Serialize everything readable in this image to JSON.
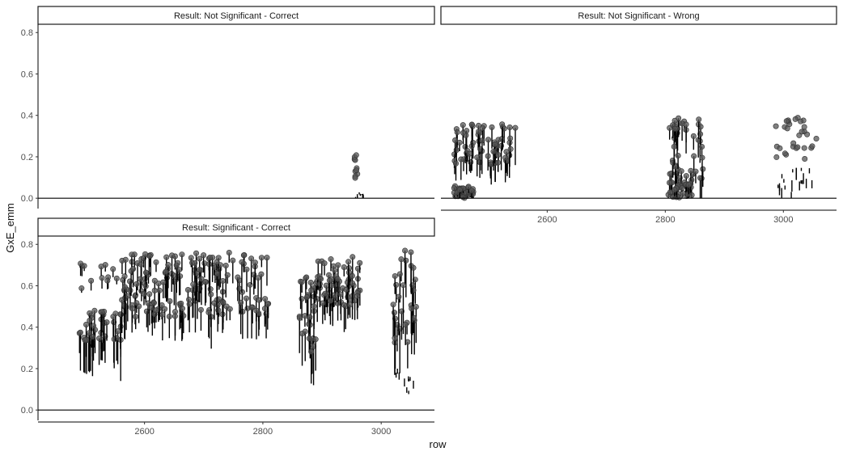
{
  "chart_data": {
    "type": "scatter",
    "xlabel": "row",
    "ylabel": "GxE_emm",
    "ylim": [
      0.0,
      0.82
    ],
    "yticks": [
      "0.0",
      "0.2",
      "0.4",
      "0.6",
      "0.8"
    ],
    "xticks": [
      "2600",
      "2800",
      "3000"
    ],
    "xlim": [
      2420,
      3090
    ],
    "hline_y": 0,
    "point_color": "#555555",
    "line_color": "#000000",
    "facets": [
      {
        "title": "Result: Not Significant - Correct",
        "groups": [
          {
            "x": [
              2955,
              2960
            ],
            "y": [
              0.08,
              0.22
            ],
            "n": 10,
            "h": [
              0.005,
              0.02
            ],
            "style": "point"
          },
          {
            "x": [
              2955,
              2975
            ],
            "y": [
              0.0,
              0.03
            ],
            "n": 10,
            "h": [
              0.005,
              0.02
            ],
            "style": "bar"
          }
        ]
      },
      {
        "title": "Result: Not Significant - Wrong",
        "groups": [
          {
            "x": [
              2442,
              2540
            ],
            "y": [
              0.16,
              0.36
            ],
            "n": 70,
            "h": [
              0.04,
              0.12
            ],
            "style": "pointline"
          },
          {
            "x": [
              2442,
              2475
            ],
            "y": [
              0.0,
              0.06
            ],
            "n": 40,
            "h": [
              0.01,
              0.05
            ],
            "style": "pointline"
          },
          {
            "x": [
              2546,
              2547
            ],
            "y": [
              0.34,
              0.34
            ],
            "n": 1,
            "h": [
              0.18,
              0.18
            ],
            "style": "pointline"
          },
          {
            "x": [
              2805,
              2865
            ],
            "y": [
              0.08,
              0.39
            ],
            "n": 45,
            "h": [
              0.05,
              0.12
            ],
            "style": "pointline"
          },
          {
            "x": [
              2805,
              2845
            ],
            "y": [
              0.0,
              0.08
            ],
            "n": 40,
            "h": [
              0.01,
              0.06
            ],
            "style": "pointline"
          },
          {
            "x": [
              2985,
              3060
            ],
            "y": [
              0.18,
              0.39
            ],
            "n": 30,
            "h": [
              0.0,
              0.01
            ],
            "style": "point"
          },
          {
            "x": [
              2985,
              3050
            ],
            "y": [
              0.0,
              0.15
            ],
            "n": 20,
            "h": [
              0.01,
              0.06
            ],
            "style": "bar"
          }
        ]
      },
      {
        "title": "Result: Significant - Correct",
        "groups": [
          {
            "x": [
              2490,
              2560
            ],
            "y": [
              0.33,
              0.48
            ],
            "n": 40,
            "h": [
              0.08,
              0.2
            ],
            "style": "pointline"
          },
          {
            "x": [
              2490,
              2560
            ],
            "y": [
              0.58,
              0.72
            ],
            "n": 12,
            "h": [
              0.02,
              0.06
            ],
            "style": "pointline"
          },
          {
            "x": [
              2560,
              2810
            ],
            "y": [
              0.45,
              0.76
            ],
            "n": 190,
            "h": [
              0.04,
              0.16
            ],
            "style": "pointline"
          },
          {
            "x": [
              2860,
              2890
            ],
            "y": [
              0.28,
              0.66
            ],
            "n": 30,
            "h": [
              0.05,
              0.2
            ],
            "style": "pointline"
          },
          {
            "x": [
              2890,
              2965
            ],
            "y": [
              0.5,
              0.74
            ],
            "n": 70,
            "h": [
              0.04,
              0.14
            ],
            "style": "pointline"
          },
          {
            "x": [
              3020,
              3060
            ],
            "y": [
              0.28,
              0.78
            ],
            "n": 30,
            "h": [
              0.05,
              0.25
            ],
            "style": "pointline"
          },
          {
            "x": [
              3025,
              3060
            ],
            "y": [
              0.08,
              0.2
            ],
            "n": 10,
            "h": [
              0.01,
              0.04
            ],
            "style": "bar"
          }
        ]
      }
    ]
  }
}
